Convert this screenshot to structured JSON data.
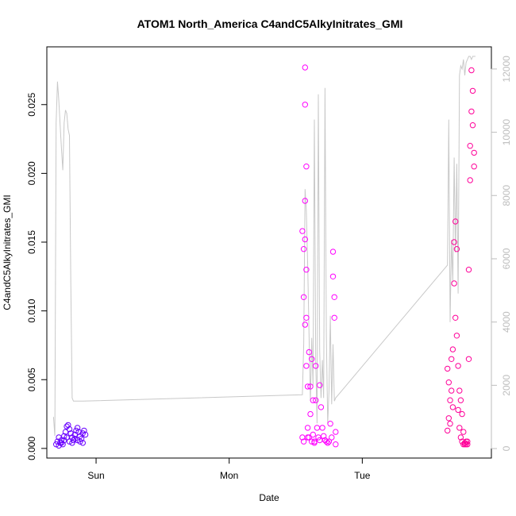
{
  "chart_data": {
    "type": "scatter",
    "title": "ATOM1 North_America C4andC5AlkyInitrates_GMI",
    "xlabel": "Date",
    "ylabel": "C4andC5AlkyInitrates_GMI",
    "x_ticks": [
      {
        "label": "Sun",
        "day": 1.0
      },
      {
        "label": "Mon",
        "day": 2.0
      },
      {
        "label": "Tue",
        "day": 3.0
      }
    ],
    "xlim_days": [
      0.63,
      3.97
    ],
    "y_left": {
      "lim": [
        -0.0007,
        0.0292
      ],
      "ticks": [
        0.0,
        0.005,
        0.01,
        0.015,
        0.02,
        0.025
      ],
      "tick_labels": [
        "0.000",
        "0.005",
        "0.010",
        "0.015",
        "0.020",
        "0.025"
      ]
    },
    "y_right": {
      "lim": [
        -300,
        12700
      ],
      "ticks": [
        0,
        2000,
        4000,
        6000,
        8000,
        10000,
        12000
      ],
      "tick_labels": [
        "0",
        "2000",
        "4000",
        "6000",
        "8000",
        "10000",
        "12000"
      ],
      "color": "#bdbdbd"
    },
    "point_colors": [
      "#6a00ff",
      "#ff00ff",
      "#ff0099"
    ],
    "altitude_line_color": "#c8c8c8",
    "series": [
      {
        "color": "#6a00ff",
        "marker": "circle-open",
        "x": [
          0.7,
          0.71,
          0.72,
          0.73,
          0.74,
          0.75,
          0.76,
          0.77,
          0.78,
          0.79,
          0.8,
          0.81,
          0.82,
          0.83,
          0.84,
          0.85,
          0.86,
          0.87,
          0.88,
          0.89,
          0.9,
          0.91,
          0.92,
          0.72,
          0.74,
          0.76,
          0.78,
          0.8,
          0.82,
          0.84,
          0.86,
          0.88,
          0.9
        ],
        "y": [
          0.0003,
          0.0005,
          0.0008,
          0.0004,
          0.0006,
          0.0003,
          0.0009,
          0.0012,
          0.0016,
          0.0017,
          0.0014,
          0.0011,
          0.0008,
          0.0006,
          0.001,
          0.0013,
          0.0015,
          0.0012,
          0.0009,
          0.0007,
          0.0011,
          0.0013,
          0.001,
          0.0002,
          0.0004,
          0.0006,
          0.0008,
          0.0005,
          0.0004,
          0.0007,
          0.0006,
          0.0005,
          0.0004
        ]
      },
      {
        "color": "#ff00ff",
        "marker": "circle-open",
        "x": [
          2.55,
          2.55,
          2.56,
          2.56,
          2.56,
          2.57,
          2.57,
          2.57,
          2.57,
          2.57,
          2.58,
          2.58,
          2.58,
          2.58,
          2.59,
          2.59,
          2.59,
          2.6,
          2.6,
          2.61,
          2.61,
          2.62,
          2.62,
          2.63,
          2.63,
          2.64,
          2.64,
          2.65,
          2.65,
          2.66,
          2.67,
          2.68,
          2.68,
          2.69,
          2.7,
          2.71,
          2.72,
          2.73,
          2.74,
          2.75,
          2.76,
          2.77,
          2.78,
          2.78,
          2.79,
          2.79,
          2.8,
          2.8
        ],
        "y": [
          0.0008,
          0.0158,
          0.0005,
          0.011,
          0.0145,
          0.0152,
          0.0277,
          0.025,
          0.018,
          0.009,
          0.0095,
          0.0205,
          0.013,
          0.006,
          0.0045,
          0.0015,
          0.0008,
          0.0008,
          0.007,
          0.0045,
          0.0025,
          0.0005,
          0.0065,
          0.0035,
          0.001,
          0.0005,
          0.0004,
          0.006,
          0.0035,
          0.0015,
          0.0008,
          0.0006,
          0.0046,
          0.003,
          0.0015,
          0.0009,
          0.0006,
          0.0005,
          0.0004,
          0.0005,
          0.0018,
          0.0008,
          0.0143,
          0.0125,
          0.0095,
          0.011,
          0.0012,
          0.0003
        ]
      },
      {
        "color": "#ff0099",
        "marker": "circle-open",
        "x": [
          3.64,
          3.64,
          3.65,
          3.65,
          3.66,
          3.66,
          3.67,
          3.67,
          3.68,
          3.68,
          3.69,
          3.69,
          3.7,
          3.7,
          3.71,
          3.71,
          3.72,
          3.72,
          3.73,
          3.73,
          3.74,
          3.74,
          3.75,
          3.75,
          3.76,
          3.76,
          3.77,
          3.77,
          3.78,
          3.78,
          3.79,
          3.79,
          3.8,
          3.8,
          3.81,
          3.81,
          3.82,
          3.82,
          3.83,
          3.83,
          3.84,
          3.84
        ],
        "y": [
          0.0013,
          0.0058,
          0.0022,
          0.0048,
          0.0035,
          0.0018,
          0.0065,
          0.0042,
          0.0072,
          0.003,
          0.015,
          0.012,
          0.0165,
          0.0095,
          0.0145,
          0.0082,
          0.006,
          0.0028,
          0.0042,
          0.0015,
          0.0035,
          0.0008,
          0.0025,
          0.0005,
          0.0012,
          0.0003,
          0.0004,
          0.0003,
          0.0005,
          0.0003,
          0.0005,
          0.0003,
          0.0065,
          0.013,
          0.0195,
          0.022,
          0.0245,
          0.0275,
          0.026,
          0.0235,
          0.0205,
          0.0215
        ]
      }
    ],
    "altitude_line": {
      "axis": "right",
      "x": [
        0.68,
        0.69,
        0.7,
        0.71,
        0.72,
        0.73,
        0.74,
        0.75,
        0.76,
        0.77,
        0.78,
        0.79,
        0.8,
        0.81,
        0.82,
        0.83,
        0.84,
        0.85,
        0.86,
        0.87,
        0.88,
        0.89,
        0.9,
        2.55,
        2.56,
        2.57,
        2.58,
        2.59,
        2.6,
        2.61,
        2.62,
        2.63,
        2.64,
        2.65,
        2.66,
        2.67,
        2.68,
        2.69,
        2.7,
        2.71,
        2.72,
        2.73,
        2.74,
        2.75,
        2.76,
        2.77,
        2.78,
        2.79,
        2.8,
        2.82,
        3.64,
        3.65,
        3.66,
        3.67,
        3.68,
        3.69,
        3.7,
        3.71,
        3.72,
        3.73,
        3.74,
        3.75,
        3.76,
        3.77,
        3.78,
        3.79,
        3.8,
        3.81,
        3.82,
        3.83,
        3.84,
        3.85
      ],
      "y": [
        1000,
        400,
        10300,
        11600,
        11000,
        10200,
        9500,
        8800,
        10300,
        10700,
        10600,
        10100,
        9900,
        5200,
        1600,
        1500,
        1500,
        1500,
        1500,
        1500,
        1500,
        1500,
        1500,
        1700,
        3300,
        8200,
        7500,
        5800,
        3600,
        1500,
        3500,
        2000,
        10400,
        2800,
        800,
        11200,
        3100,
        1600,
        2800,
        1600,
        11400,
        3600,
        800,
        1800,
        4200,
        1400,
        3300,
        1500,
        1600,
        1700,
        5800,
        10400,
        4000,
        6600,
        5300,
        9200,
        6200,
        9000,
        4900,
        11800,
        12100,
        12000,
        12300,
        11800,
        12200,
        12300,
        12400,
        12400,
        12300,
        12400,
        12400,
        12400
      ]
    }
  }
}
